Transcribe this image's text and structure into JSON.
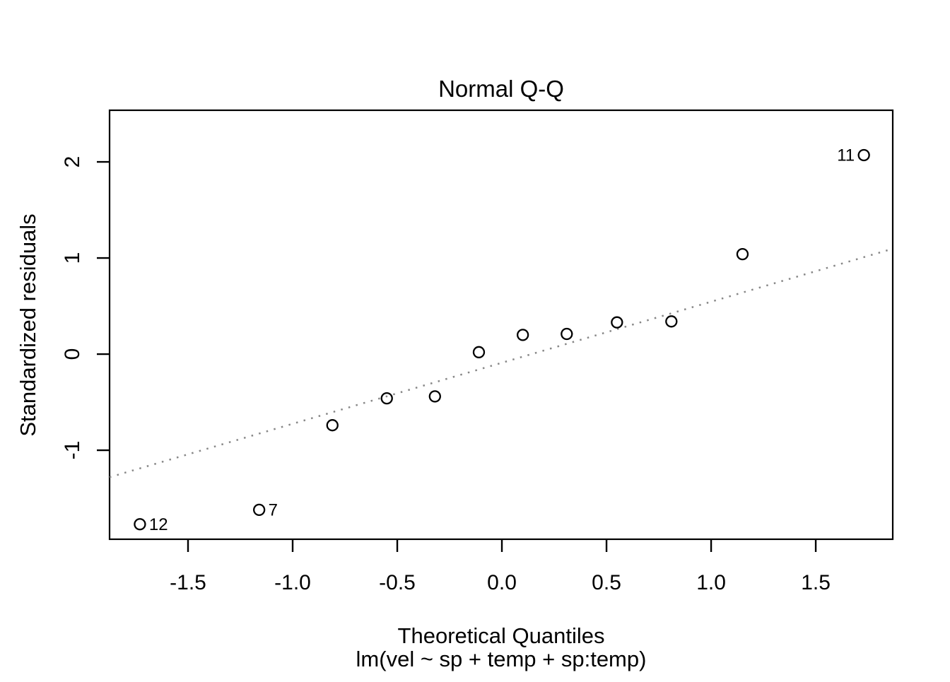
{
  "figure": {
    "background_color": "#ffffff",
    "foreground_color": "#000000"
  },
  "chart_data": {
    "type": "scatter",
    "title": "Normal Q-Q",
    "xlabel": "Theoretical Quantiles",
    "sublabel": "lm(vel ~ sp + temp + sp:temp)",
    "ylabel": "Standardized residuals",
    "xlim": [
      -1.875,
      1.868
    ],
    "ylim": [
      -1.926,
      2.537
    ],
    "grid": false,
    "legend": false,
    "x_tick_values": [
      -1.5,
      -1.0,
      -0.5,
      0.0,
      0.5,
      1.0,
      1.5
    ],
    "x_tick_labels": [
      "-1.5",
      "-1.0",
      "-0.5",
      "0.0",
      "0.5",
      "1.0",
      "1.5"
    ],
    "y_tick_values": [
      -1,
      0,
      1,
      2
    ],
    "y_tick_labels": [
      "-1",
      "0",
      "1",
      "2"
    ],
    "points": [
      {
        "x": -1.73,
        "y": -1.77,
        "label": "12",
        "label_side": "right"
      },
      {
        "x": -1.16,
        "y": -1.62,
        "label": "7",
        "label_side": "right"
      },
      {
        "x": -0.81,
        "y": -0.74
      },
      {
        "x": -0.55,
        "y": -0.46
      },
      {
        "x": -0.32,
        "y": -0.44
      },
      {
        "x": -0.11,
        "y": 0.02
      },
      {
        "x": 0.1,
        "y": 0.2
      },
      {
        "x": 0.31,
        "y": 0.21
      },
      {
        "x": 0.55,
        "y": 0.33
      },
      {
        "x": 0.81,
        "y": 0.34
      },
      {
        "x": 1.15,
        "y": 1.04
      },
      {
        "x": 1.73,
        "y": 2.07,
        "label": "11",
        "label_side": "left"
      }
    ],
    "ref_line": {
      "slope": 0.635,
      "intercept": -0.09,
      "style": "dotted",
      "color": "#878787"
    },
    "point_style": {
      "shape": "open-circle",
      "radius": 7.5,
      "stroke_color": "#000000"
    }
  }
}
